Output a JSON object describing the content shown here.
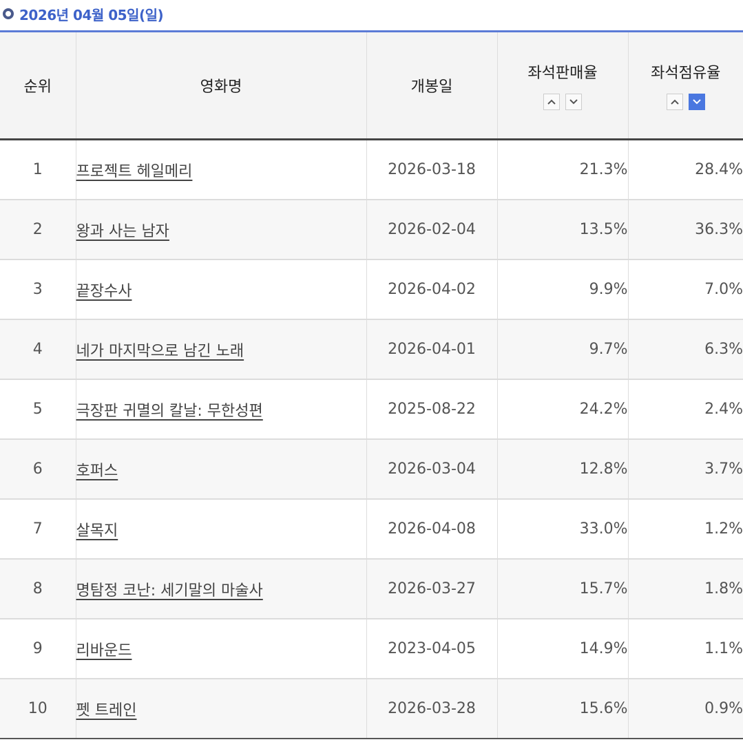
{
  "header": {
    "date_label": "2026년 04월 05일(일)"
  },
  "table": {
    "columns": {
      "rank": "순위",
      "title": "영화명",
      "release": "개봉일",
      "sales_rate": "좌석판매율",
      "occupancy": "좌석점유율"
    },
    "sort": {
      "sales_rate": "none",
      "occupancy": "desc"
    },
    "rows": [
      {
        "rank": "1",
        "title": "프로젝트 헤일메리",
        "release": "2026-03-18",
        "sales_rate": "21.3%",
        "occupancy": "28.4%"
      },
      {
        "rank": "2",
        "title": "왕과 사는 남자",
        "release": "2026-02-04",
        "sales_rate": "13.5%",
        "occupancy": "36.3%"
      },
      {
        "rank": "3",
        "title": "끝장수사",
        "release": "2026-04-02",
        "sales_rate": "9.9%",
        "occupancy": "7.0%"
      },
      {
        "rank": "4",
        "title": "네가 마지막으로 남긴 노래",
        "release": "2026-04-01",
        "sales_rate": "9.7%",
        "occupancy": "6.3%"
      },
      {
        "rank": "5",
        "title": "극장판 귀멸의 칼날: 무한성편",
        "release": "2025-08-22",
        "sales_rate": "24.2%",
        "occupancy": "2.4%"
      },
      {
        "rank": "6",
        "title": "호퍼스",
        "release": "2026-03-04",
        "sales_rate": "12.8%",
        "occupancy": "3.7%"
      },
      {
        "rank": "7",
        "title": "살목지",
        "release": "2026-04-08",
        "sales_rate": "33.0%",
        "occupancy": "1.2%"
      },
      {
        "rank": "8",
        "title": "명탐정 코난: 세기말의 마술사",
        "release": "2026-03-27",
        "sales_rate": "15.7%",
        "occupancy": "1.8%"
      },
      {
        "rank": "9",
        "title": "리바운드",
        "release": "2023-04-05",
        "sales_rate": "14.9%",
        "occupancy": "1.1%"
      },
      {
        "rank": "10",
        "title": "펫 트레인",
        "release": "2026-03-28",
        "sales_rate": "15.6%",
        "occupancy": "0.9%"
      }
    ]
  },
  "colors": {
    "accent": "#3d62c9",
    "active_sort": "#4a77e0"
  }
}
